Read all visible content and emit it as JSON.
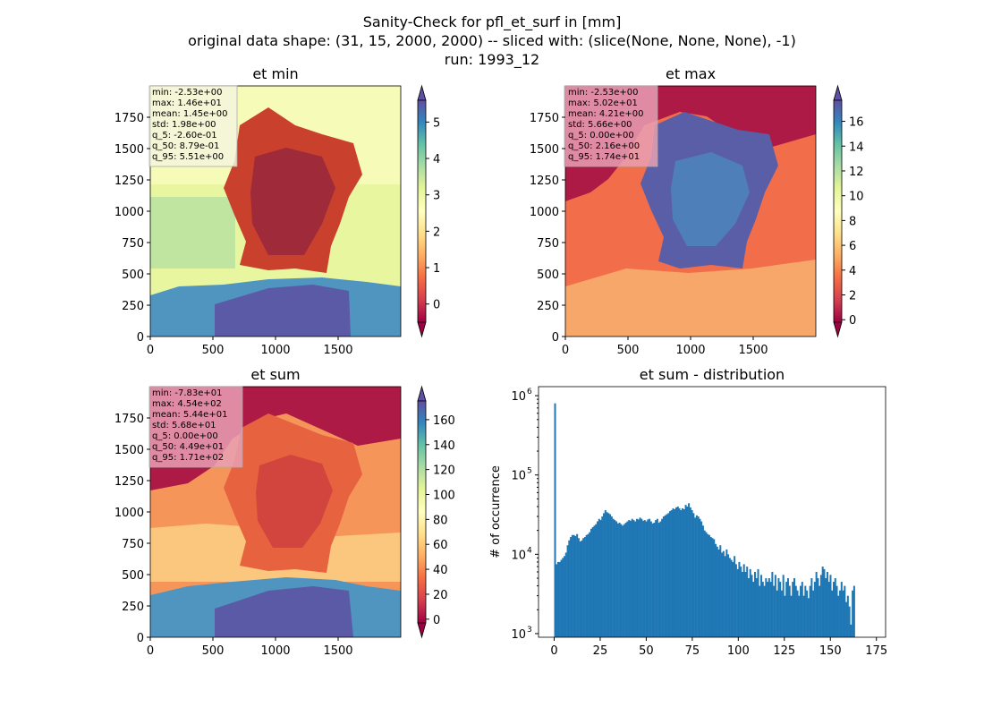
{
  "suptitle": {
    "line1": "Sanity-Check for pfl_et_surf in [mm]",
    "line2": "original data shape: (31, 15, 2000, 2000) -- sliced with: (slice(None, None, None), -1)",
    "line3": "run: 1993_12"
  },
  "colors": {
    "spectral": [
      "#9e0142",
      "#d53e4f",
      "#f46d43",
      "#fdae61",
      "#fee08b",
      "#ffffbf",
      "#e6f598",
      "#abdda4",
      "#66c2a5",
      "#3288bd",
      "#5e4fa2"
    ],
    "hist_bar": "#1f77b4",
    "stats_box_light": "#f5f5dc",
    "stats_box_pink": "#e8a0b4"
  },
  "chart_data": [
    {
      "type": "heatmap",
      "title": "et min",
      "x_ticks": [
        "0",
        "500",
        "1000",
        "1500"
      ],
      "y_ticks": [
        "0",
        "250",
        "500",
        "750",
        "1000",
        "1250",
        "1500",
        "1750"
      ],
      "xlim": [
        0,
        2000
      ],
      "ylim": [
        0,
        2000
      ],
      "colormap": "Spectral",
      "colorbar": {
        "vmin": -0.5,
        "vmax": 5.6,
        "ticks": [
          "0",
          "1",
          "2",
          "3",
          "4",
          "5"
        ],
        "extend": "both"
      },
      "stats_lines": [
        "min: -2.53e+00",
        "max: 1.46e+01",
        "mean: 1.45e+00",
        "std: 1.98e+00",
        "q_5: -2.60e-01",
        "q_50: 8.79e-01",
        "q_95: 5.51e+00"
      ],
      "stats_box": "light"
    },
    {
      "type": "heatmap",
      "title": "et max",
      "x_ticks": [
        "0",
        "500",
        "1000",
        "1500"
      ],
      "y_ticks": [
        "0",
        "250",
        "500",
        "750",
        "1000",
        "1250",
        "1500",
        "1750"
      ],
      "xlim": [
        0,
        2000
      ],
      "ylim": [
        0,
        2000
      ],
      "colormap": "Spectral",
      "colorbar": {
        "vmin": -0.2,
        "vmax": 17.7,
        "ticks": [
          "0",
          "2",
          "4",
          "6",
          "8",
          "10",
          "12",
          "14",
          "16"
        ],
        "extend": "both"
      },
      "stats_lines": [
        "min: -2.53e+00",
        "max: 5.02e+01",
        "mean: 4.21e+00",
        "std: 5.66e+00",
        "q_5: 0.00e+00",
        "q_50: 2.16e+00",
        "q_95: 1.74e+01"
      ],
      "stats_box": "pink"
    },
    {
      "type": "heatmap",
      "title": "et sum",
      "x_ticks": [
        "0",
        "500",
        "1000",
        "1500"
      ],
      "y_ticks": [
        "0",
        "250",
        "500",
        "750",
        "1000",
        "1250",
        "1500",
        "1750"
      ],
      "xlim": [
        0,
        2000
      ],
      "ylim": [
        0,
        2000
      ],
      "colormap": "Spectral",
      "colorbar": {
        "vmin": -3,
        "vmax": 175,
        "ticks": [
          "0",
          "20",
          "40",
          "60",
          "80",
          "100",
          "120",
          "140",
          "160"
        ],
        "extend": "both"
      },
      "stats_lines": [
        "min: -7.83e+01",
        "max: 4.54e+02",
        "mean: 5.44e+01",
        "std: 5.68e+01",
        "q_5: 0.00e+00",
        "q_50: 4.49e+01",
        "q_95: 1.71e+02"
      ],
      "stats_box": "pink"
    },
    {
      "type": "bar",
      "title": "et sum - distribution",
      "ylabel": "# of occurrence",
      "yscale": "log",
      "xlim": [
        -8.5,
        180
      ],
      "ylim": [
        900,
        1300000
      ],
      "x_ticks": [
        0,
        25,
        50,
        75,
        100,
        125,
        150,
        175
      ],
      "y_ticks": [
        {
          "value": 1000,
          "label": "10",
          "exp": "3"
        },
        {
          "value": 10000,
          "label": "10",
          "exp": "4"
        },
        {
          "value": 100000,
          "label": "10",
          "exp": "5"
        },
        {
          "value": 1000000,
          "label": "10",
          "exp": "6"
        }
      ],
      "bin_start": 0,
      "bin_width": 0.855,
      "values": [
        800000,
        7500,
        8000,
        8000,
        8500,
        9000,
        9500,
        10500,
        13000,
        15000,
        16500,
        17500,
        17500,
        17000,
        18000,
        16000,
        14500,
        15000,
        16000,
        16500,
        17500,
        18000,
        19000,
        21000,
        22000,
        23000,
        24000,
        26000,
        28000,
        27000,
        30000,
        33000,
        36000,
        34000,
        33000,
        32000,
        30000,
        28000,
        27000,
        26000,
        24500,
        25000,
        24000,
        23000,
        24000,
        25000,
        26000,
        27000,
        26500,
        28000,
        27000,
        26000,
        28000,
        27500,
        29000,
        28000,
        26500,
        27000,
        26000,
        27500,
        28000,
        26000,
        24500,
        25000,
        27000,
        28000,
        25000,
        26000,
        28000,
        30000,
        31000,
        32000,
        33000,
        35000,
        36000,
        38000,
        37000,
        39000,
        40000,
        38000,
        36000,
        38000,
        37000,
        42000,
        40000,
        44000,
        39000,
        36000,
        33000,
        29000,
        31000,
        30000,
        28000,
        26000,
        23000,
        20000,
        19000,
        18000,
        17500,
        16500,
        16000,
        15500,
        13500,
        12500,
        11500,
        13000,
        10500,
        11000,
        9500,
        11500,
        10000,
        9000,
        8500,
        8000,
        9500,
        7500,
        6500,
        8000,
        7000,
        6000,
        7500,
        6000,
        7000,
        5000,
        6500,
        5500,
        4500,
        6000,
        5000,
        6500,
        4000,
        5500,
        4500,
        4000,
        5000,
        4500,
        5000,
        4500,
        6000,
        4000,
        5500,
        3500,
        5000,
        4500,
        3500,
        5500,
        3000,
        4500,
        5000,
        4000,
        3000,
        4500,
        5000,
        4000,
        3500,
        3000,
        4000,
        4500,
        3000,
        4000,
        3500,
        2800,
        4000,
        5000,
        3500,
        4500,
        6000,
        5000,
        4000,
        5500,
        7000,
        6500,
        5000,
        6000,
        4500,
        5500,
        3500,
        4500,
        5000,
        4000,
        3000,
        3500,
        4500,
        3500,
        4000,
        2500,
        3000,
        2200,
        1300,
        3500,
        4000
      ]
    }
  ]
}
